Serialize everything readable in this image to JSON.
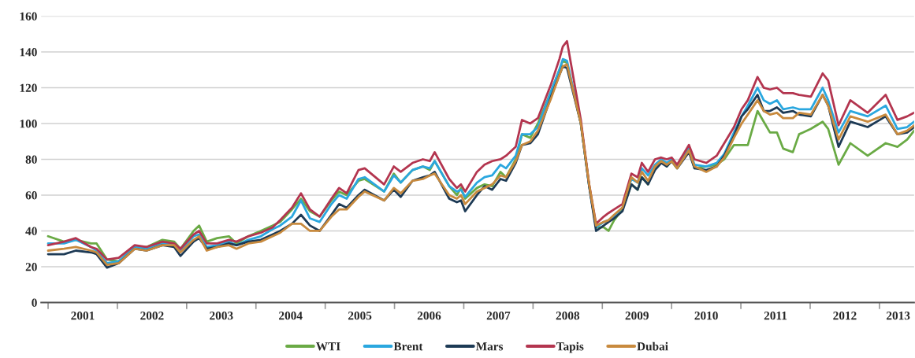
{
  "chart_data": {
    "type": "line",
    "x": [
      2001.0,
      2001.23,
      2001.4,
      2001.62,
      2001.7,
      2001.85,
      2002.02,
      2002.25,
      2002.42,
      2002.65,
      2002.82,
      2002.91,
      2003.1,
      2003.18,
      2003.29,
      2003.44,
      2003.61,
      2003.72,
      2003.89,
      2004.07,
      2004.24,
      2004.35,
      2004.52,
      2004.65,
      2004.78,
      2004.92,
      2005.09,
      2005.2,
      2005.31,
      2005.48,
      2005.57,
      2005.85,
      2005.99,
      2006.09,
      2006.26,
      2006.41,
      2006.51,
      2006.58,
      2006.79,
      2006.9,
      2006.96,
      2007.02,
      2007.19,
      2007.3,
      2007.41,
      2007.53,
      2007.61,
      2007.75,
      2007.84,
      2007.96,
      2008.07,
      2008.26,
      2008.38,
      2008.43,
      2008.49,
      2008.69,
      2008.81,
      2008.91,
      2009.02,
      2009.09,
      2009.17,
      2009.29,
      2009.42,
      2009.51,
      2009.57,
      2009.66,
      2009.76,
      2009.85,
      2009.93,
      2010.0,
      2010.08,
      2010.25,
      2010.33,
      2010.5,
      2010.65,
      2010.76,
      2010.9,
      2011.01,
      2011.1,
      2011.24,
      2011.33,
      2011.42,
      2011.52,
      2011.61,
      2011.75,
      2011.84,
      2012.01,
      2012.18,
      2012.26,
      2012.41,
      2012.58,
      2012.83,
      2013.09,
      2013.26,
      2013.4,
      2013.5
    ],
    "series": [
      {
        "name": "WTI",
        "color": "#6aaa45",
        "values": [
          37,
          34,
          35,
          33,
          33,
          24,
          23,
          31,
          31,
          35,
          34,
          30,
          40,
          43,
          34,
          36,
          37,
          33,
          37,
          40,
          43,
          45,
          52,
          58,
          51,
          48,
          57,
          62,
          60,
          68,
          69,
          62,
          72,
          67,
          74,
          76,
          74,
          79,
          65,
          60,
          64,
          58,
          64,
          66,
          65,
          73,
          70,
          80,
          94,
          92,
          100,
          118,
          130,
          135,
          134,
          100,
          65,
          42,
          42,
          40,
          46,
          52,
          66,
          63,
          70,
          66,
          76,
          79,
          76,
          79,
          75,
          85,
          75,
          76,
          77,
          80,
          88,
          88,
          88,
          107,
          101,
          95,
          95,
          86,
          84,
          94,
          97,
          101,
          97,
          77,
          89,
          82,
          89,
          87,
          91,
          96
        ]
      },
      {
        "name": "Brent",
        "color": "#2aa7df",
        "values": [
          33,
          33,
          35,
          31,
          29,
          22,
          23,
          31,
          30,
          33,
          33,
          29,
          37,
          38,
          31,
          32,
          34,
          32,
          35,
          37,
          41,
          43,
          48,
          57,
          47,
          45,
          55,
          60,
          58,
          69,
          70,
          62,
          71,
          67,
          74,
          76,
          75,
          79,
          65,
          62,
          63,
          59,
          67,
          70,
          71,
          77,
          75,
          82,
          94,
          94,
          98,
          118,
          130,
          136,
          135,
          100,
          65,
          42,
          45,
          46,
          48,
          53,
          69,
          67,
          75,
          71,
          77,
          80,
          78,
          80,
          76,
          86,
          77,
          76,
          78,
          83,
          95,
          104,
          110,
          120,
          113,
          111,
          113,
          108,
          109,
          108,
          108,
          120,
          113,
          95,
          107,
          104,
          110,
          97,
          98,
          101
        ]
      },
      {
        "name": "Mars",
        "color": "#1d3a55",
        "values": [
          27,
          27,
          29,
          28,
          27,
          19.5,
          22,
          30,
          29,
          32,
          31,
          26,
          34,
          36,
          30,
          31,
          33,
          32,
          34,
          35,
          38,
          40,
          44,
          49,
          43,
          40,
          49,
          55,
          53,
          60,
          63,
          57,
          63,
          59,
          68,
          70,
          71,
          73,
          58,
          56,
          57,
          51,
          60,
          65,
          63,
          69,
          68,
          78,
          88,
          89,
          94,
          115,
          127,
          132,
          131,
          100,
          65,
          40,
          43,
          45,
          47,
          51,
          66,
          63,
          70,
          66,
          74,
          78,
          76,
          79,
          75,
          84,
          75,
          74,
          76,
          82,
          93,
          104,
          108,
          116,
          107,
          107,
          109,
          106,
          107,
          105,
          104,
          116,
          110,
          87,
          101,
          98,
          104,
          94,
          95,
          98
        ]
      },
      {
        "name": "Tapis",
        "color": "#b3354f",
        "values": [
          32,
          34,
          36,
          31,
          30,
          24,
          25,
          32,
          31,
          34,
          33,
          30,
          38,
          40,
          33,
          33,
          35,
          34,
          37,
          39,
          42,
          46,
          53,
          61,
          52,
          48,
          58,
          64,
          61,
          74,
          75,
          66,
          76,
          73,
          78,
          80,
          79,
          84,
          69,
          64,
          66,
          62,
          73,
          77,
          79,
          80,
          82,
          87,
          102,
          100,
          103,
          122,
          136,
          143,
          146,
          102,
          66,
          44,
          48,
          50,
          52,
          55,
          72,
          70,
          78,
          73,
          80,
          81,
          80,
          81,
          77,
          88,
          80,
          78,
          82,
          89,
          98,
          108,
          113,
          126,
          120,
          119,
          120,
          117,
          117,
          116,
          115,
          128,
          124,
          99,
          113,
          106,
          116,
          102,
          104,
          106
        ]
      },
      {
        "name": "Dubai",
        "color": "#c88a3e",
        "values": [
          29,
          30,
          31,
          29,
          28,
          21,
          22,
          30,
          29,
          32,
          32,
          28,
          35,
          37,
          29,
          31,
          32,
          30,
          33,
          34,
          37,
          39,
          44,
          44,
          40,
          40,
          48,
          52,
          52,
          59,
          62,
          57,
          64,
          61,
          68,
          69,
          71,
          72,
          60,
          58,
          60,
          55,
          62,
          64,
          66,
          71,
          70,
          79,
          88,
          90,
          96,
          114,
          127,
          132,
          133,
          100,
          66,
          43,
          45,
          46,
          49,
          53,
          70,
          67,
          73,
          68,
          76,
          79,
          77,
          79,
          75,
          85,
          76,
          73,
          76,
          81,
          92,
          100,
          105,
          113,
          107,
          105,
          106,
          103,
          103,
          106,
          105,
          116,
          110,
          91,
          104,
          101,
          105,
          94,
          96,
          99
        ]
      }
    ],
    "xlim": [
      2000.9,
      2013.5
    ],
    "xticks": [
      {
        "value": 2001,
        "label": null
      },
      {
        "value": 2002,
        "label": null
      },
      {
        "value": 2003,
        "label": null
      },
      {
        "value": 2004,
        "label": null
      },
      {
        "value": 2005,
        "label": null
      },
      {
        "value": 2006,
        "label": null
      },
      {
        "value": 2007,
        "label": null
      },
      {
        "value": 2008,
        "label": null
      },
      {
        "value": 2009,
        "label": null
      },
      {
        "value": 2010,
        "label": null
      },
      {
        "value": 2011,
        "label": null
      },
      {
        "value": 2012,
        "label": null
      },
      {
        "value": 2013,
        "label": null
      },
      {
        "value": 2001.5,
        "label": "2001"
      },
      {
        "value": 2002.5,
        "label": "2002"
      },
      {
        "value": 2003.5,
        "label": "2003"
      },
      {
        "value": 2004.5,
        "label": "2004"
      },
      {
        "value": 2005.5,
        "label": "2005"
      },
      {
        "value": 2006.5,
        "label": "2006"
      },
      {
        "value": 2007.5,
        "label": "2007"
      },
      {
        "value": 2008.5,
        "label": "2008"
      },
      {
        "value": 2009.5,
        "label": "2009"
      },
      {
        "value": 2010.5,
        "label": "2010"
      },
      {
        "value": 2011.5,
        "label": "2011"
      },
      {
        "value": 2012.5,
        "label": "2012"
      },
      {
        "value": 2013.27,
        "label": "2013"
      }
    ],
    "ylim": [
      0,
      160
    ],
    "yticks": [
      0,
      20,
      40,
      60,
      80,
      100,
      120,
      140,
      160
    ],
    "grid": "y",
    "legend": "bottom",
    "line_style": "solid",
    "marker": "none"
  }
}
